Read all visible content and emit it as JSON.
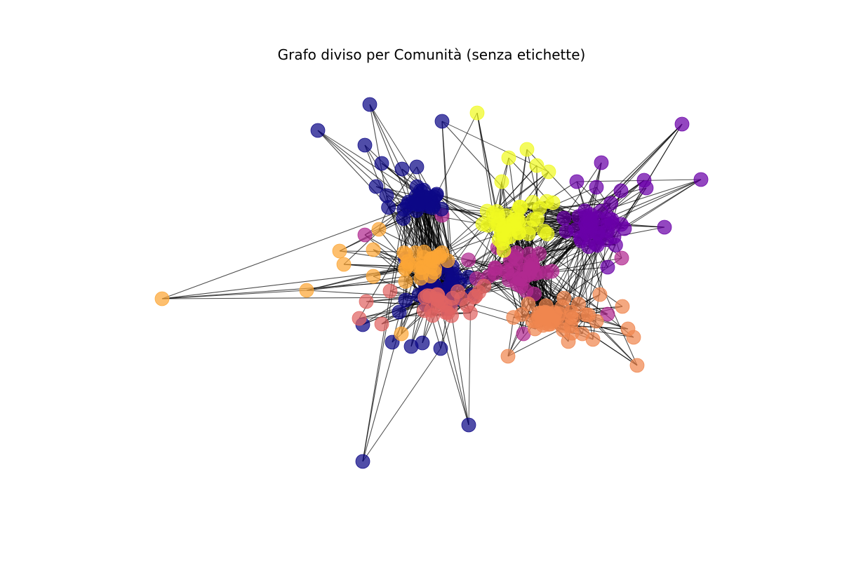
{
  "title": "Grafo diviso per Comunità (senza etichette)",
  "chart_data": {
    "type": "network",
    "title": "Grafo diviso per Comunità (senza etichette)",
    "node_labels_shown": false,
    "edge_color": "#000000",
    "communities": [
      {
        "id": 0,
        "color": "#0d0887"
      },
      {
        "id": 1,
        "color": "#6a00a8"
      },
      {
        "id": 2,
        "color": "#b12a90"
      },
      {
        "id": 3,
        "color": "#e16462"
      },
      {
        "id": 4,
        "color": "#f0864f"
      },
      {
        "id": 5,
        "color": "#fca636"
      },
      {
        "id": 6,
        "color": "#f0f921"
      }
    ]
  }
}
